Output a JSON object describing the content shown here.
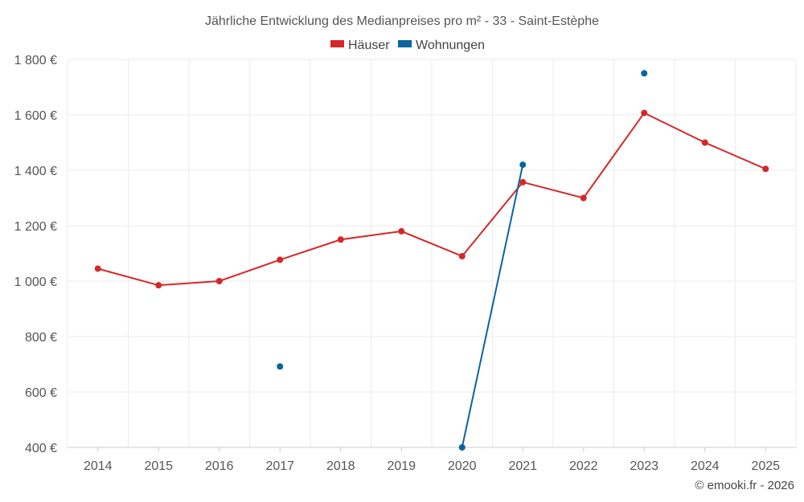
{
  "chart_data": {
    "type": "line",
    "title": "Jährliche Entwicklung des Medianpreises pro m² - 33 - Saint-Estèphe",
    "categories": [
      "2014",
      "2015",
      "2016",
      "2017",
      "2018",
      "2019",
      "2020",
      "2021",
      "2022",
      "2023",
      "2024",
      "2025"
    ],
    "y_ticks": [
      "400 €",
      "600 €",
      "800 €",
      "1 000 €",
      "1 200 €",
      "1 400 €",
      "1 600 €",
      "1 800 €"
    ],
    "ylim": [
      400,
      1800
    ],
    "series": [
      {
        "name": "Häuser",
        "color": "#d62728",
        "values": [
          1045,
          985,
          1000,
          1077,
          1150,
          1180,
          1090,
          1357,
          1300,
          1607,
          1500,
          1405
        ]
      },
      {
        "name": "Wohnungen",
        "color": "#0a64a0",
        "values": [
          null,
          null,
          null,
          692,
          null,
          null,
          400,
          1420,
          null,
          1750,
          null,
          null
        ]
      }
    ],
    "grid": true,
    "legend_position": "top-center"
  },
  "credit": "© emooki.fr - 2026"
}
